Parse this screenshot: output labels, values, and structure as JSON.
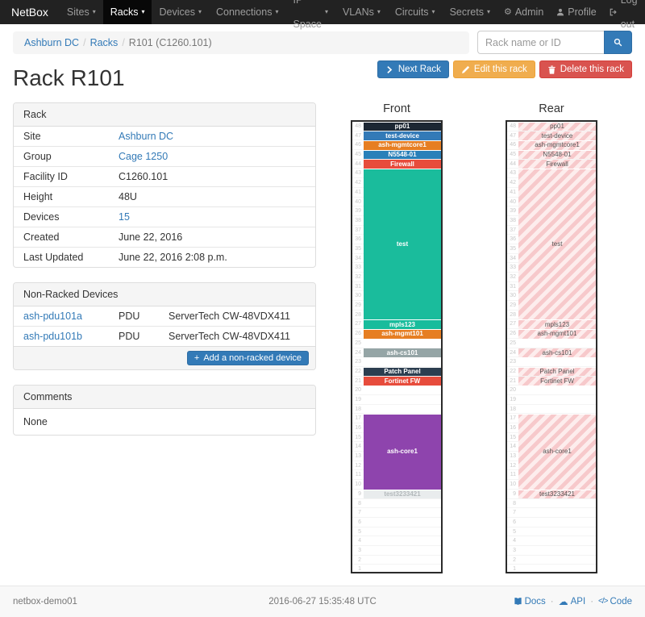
{
  "navbar": {
    "brand": "NetBox",
    "items": [
      {
        "label": "Sites",
        "active": false
      },
      {
        "label": "Racks",
        "active": true
      },
      {
        "label": "Devices",
        "active": false
      },
      {
        "label": "Connections",
        "active": false
      },
      {
        "label": "IP Space",
        "active": false
      },
      {
        "label": "VLANs",
        "active": false
      },
      {
        "label": "Circuits",
        "active": false
      },
      {
        "label": "Secrets",
        "active": false
      }
    ],
    "right_items": [
      {
        "label": "Admin",
        "icon": "gear-icon"
      },
      {
        "label": "Profile",
        "icon": "user-icon"
      },
      {
        "label": "Log out",
        "icon": "log-out-icon"
      }
    ]
  },
  "breadcrumb": {
    "items": [
      {
        "label": "Ashburn DC",
        "link": true
      },
      {
        "label": "Racks",
        "link": true
      },
      {
        "label": "R101 (C1260.101)",
        "link": false
      }
    ]
  },
  "search": {
    "placeholder": "Rack name or ID"
  },
  "page": {
    "title": "Rack R101"
  },
  "actions": {
    "next_rack": "Next Rack",
    "edit": "Edit this rack",
    "delete": "Delete this rack"
  },
  "rack_panel": {
    "title": "Rack",
    "rows": [
      {
        "label": "Site",
        "value": "Ashburn DC",
        "link": true
      },
      {
        "label": "Group",
        "value": "Cage 1250",
        "link": true
      },
      {
        "label": "Facility ID",
        "value": "C1260.101",
        "link": false
      },
      {
        "label": "Height",
        "value": "48U",
        "link": false
      },
      {
        "label": "Devices",
        "value": "15",
        "link": true
      },
      {
        "label": "Created",
        "value": "June 22, 2016",
        "link": false
      },
      {
        "label": "Last Updated",
        "value": "June 22, 2016 2:08 p.m.",
        "link": false
      }
    ]
  },
  "nonracked_panel": {
    "title": "Non-Racked Devices",
    "devices": [
      {
        "name": "ash-pdu101a",
        "role": "PDU",
        "type": "ServerTech CW-48VDX411"
      },
      {
        "name": "ash-pdu101b",
        "role": "PDU",
        "type": "ServerTech CW-48VDX411"
      }
    ],
    "add_label": "Add a non-racked device"
  },
  "comments_panel": {
    "title": "Comments",
    "body": "None"
  },
  "elevation": {
    "front_title": "Front",
    "rear_title": "Rear",
    "units": 48,
    "devices": [
      {
        "name": "pp01",
        "top_unit": 48,
        "u_height": 1,
        "color": "#1c2733",
        "text_color": "#ffffff"
      },
      {
        "name": "test-device",
        "top_unit": 47,
        "u_height": 1,
        "color": "#337ab7",
        "text_color": "#ffffff"
      },
      {
        "name": "ash-mgmtcore1",
        "top_unit": 46,
        "u_height": 1,
        "color": "#e67e22",
        "text_color": "#ffffff"
      },
      {
        "name": "N5548-01",
        "top_unit": 45,
        "u_height": 1,
        "color": "#2980b9",
        "text_color": "#ffffff"
      },
      {
        "name": "Firewall",
        "top_unit": 44,
        "u_height": 1,
        "color": "#e74c3c",
        "text_color": "#ffffff"
      },
      {
        "name": "test",
        "top_unit": 43,
        "u_height": 16,
        "color": "#1abc9c",
        "text_color": "#ffffff"
      },
      {
        "name": "mpls123",
        "top_unit": 27,
        "u_height": 1,
        "color": "#18bc9c",
        "text_color": "#ffffff"
      },
      {
        "name": "ash-mgmt101",
        "top_unit": 26,
        "u_height": 1,
        "color": "#e67e22",
        "text_color": "#ffffff"
      },
      {
        "name": "ash-cs101",
        "top_unit": 24,
        "u_height": 1,
        "color": "#95a5a6",
        "text_color": "#ffffff"
      },
      {
        "name": "Patch Panel",
        "top_unit": 22,
        "u_height": 1,
        "color": "#2c3e50",
        "text_color": "#ffffff"
      },
      {
        "name": "Fortinet FW",
        "top_unit": 21,
        "u_height": 1,
        "color": "#e74c3c",
        "text_color": "#ffffff"
      },
      {
        "name": "ash-core1",
        "top_unit": 17,
        "u_height": 8,
        "color": "#8e44ad",
        "text_color": "#ffffff"
      },
      {
        "name": "test3233421",
        "top_unit": 9,
        "u_height": 1,
        "color": "#e9eced",
        "text_color": "#b3b9bb"
      }
    ],
    "rear_stripe_colors": [
      "#f7c9cb",
      "#fdeded"
    ],
    "rear_text_color": "#555555"
  },
  "footer": {
    "hostname": "netbox-demo01",
    "timestamp": "2016-06-27 15:35:48 UTC",
    "links": [
      {
        "label": "Docs",
        "icon": "book-icon"
      },
      {
        "label": "API",
        "icon": "cloud-icon"
      },
      {
        "label": "Code",
        "icon": "code-icon"
      }
    ]
  },
  "colors": {
    "accent": "#337ab7",
    "warning": "#f0ad4e",
    "danger": "#d9534f",
    "navbar_bg": "#222222"
  }
}
